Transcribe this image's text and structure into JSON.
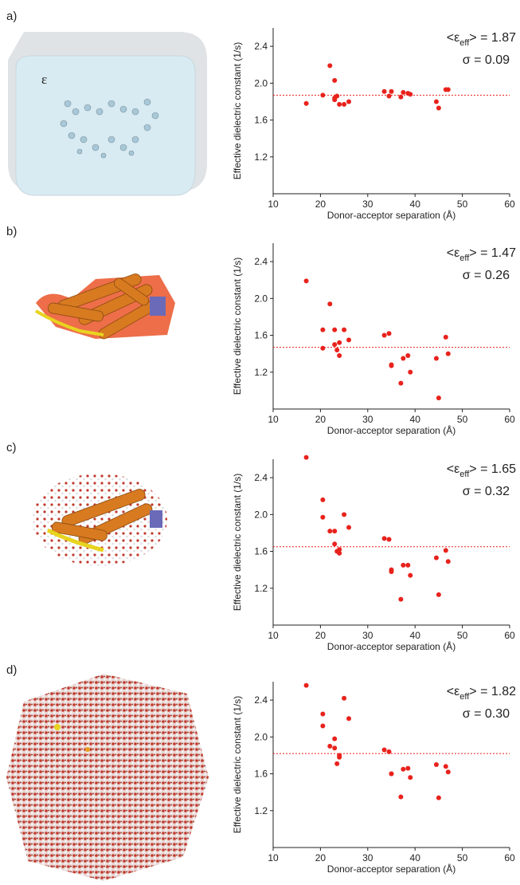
{
  "chart_data": [
    {
      "type": "scatter",
      "panel_label": "a)",
      "inset_label": "ε",
      "y_label": "Effective dielectric constant (1/s)",
      "x_label": "Donor-acceptor separation (Å)",
      "annotation": [
        "<ε",
        "eff",
        "> = 1.87"
      ],
      "sigma_label": "σ = 0.09",
      "mean": 1.87,
      "color": "#e8221c",
      "xlim": [
        10,
        60
      ],
      "xticks": [
        10,
        20,
        30,
        40,
        50,
        60
      ],
      "ylim": [
        0.8,
        2.6
      ],
      "yticks": [
        1.2,
        1.6,
        {
          "value": 2,
          "label": "2.0"
        },
        2.4
      ],
      "x": [
        17,
        20.5,
        22,
        23,
        23,
        23.5,
        23,
        24,
        25,
        26,
        33.5,
        34.5,
        35,
        37,
        37.5,
        38.5,
        39,
        44.5,
        45,
        46.5,
        47
      ],
      "values": [
        1.78,
        1.87,
        2.19,
        2.03,
        1.84,
        1.86,
        1.82,
        1.77,
        1.77,
        1.8,
        1.91,
        1.86,
        1.91,
        1.85,
        1.9,
        1.89,
        1.88,
        1.8,
        1.73,
        1.93,
        1.93
      ]
    },
    {
      "type": "scatter",
      "panel_label": "b)",
      "y_label": "Effective dielectric constant (1/s)",
      "x_label": "Donor-acceptor separation (Å)",
      "annotation": [
        "<ε",
        "eff",
        "> = 1.47"
      ],
      "sigma_label": "σ = 0.26",
      "mean": 1.47,
      "color": "#e8221c",
      "xlim": [
        10,
        60
      ],
      "xticks": [
        10,
        20,
        30,
        40,
        50,
        60
      ],
      "ylim": [
        0.8,
        2.6
      ],
      "yticks": [
        1.2,
        1.6,
        {
          "value": 2,
          "label": "2.0"
        },
        2.4
      ],
      "x": [
        17,
        20.5,
        20.5,
        22,
        23,
        23,
        23.5,
        24,
        24,
        25,
        26,
        33.5,
        34.5,
        35,
        35,
        37,
        37.5,
        38.5,
        39,
        44.5,
        45,
        46.5,
        47
      ],
      "values": [
        2.19,
        1.66,
        1.46,
        1.94,
        1.5,
        1.66,
        1.44,
        1.38,
        1.52,
        1.66,
        1.55,
        1.6,
        1.62,
        1.28,
        1.27,
        1.08,
        1.35,
        1.38,
        1.2,
        1.35,
        0.92,
        1.58,
        1.4
      ]
    },
    {
      "type": "scatter",
      "panel_label": "c)",
      "y_label": "Effective dielectric constant (1/s)",
      "x_label": "Donor-acceptor separation (Å)",
      "annotation": [
        "<ε",
        "eff",
        "> = 1.65"
      ],
      "sigma_label": "σ = 0.32",
      "mean": 1.65,
      "color": "#e8221c",
      "xlim": [
        10,
        60
      ],
      "xticks": [
        10,
        20,
        30,
        40,
        50,
        60
      ],
      "ylim": [
        0.8,
        2.6
      ],
      "yticks": [
        1.2,
        1.6,
        {
          "value": 2,
          "label": "2.0"
        },
        2.4
      ],
      "x": [
        17,
        20.5,
        20.5,
        22,
        23,
        23,
        23.5,
        24,
        24,
        25,
        26,
        33.5,
        34.5,
        35,
        35,
        37,
        37.5,
        38.5,
        39,
        44.5,
        45,
        46.5,
        47
      ],
      "values": [
        2.62,
        2.16,
        1.97,
        1.82,
        1.68,
        1.82,
        1.6,
        1.58,
        1.62,
        2.0,
        1.86,
        1.74,
        1.73,
        1.4,
        1.38,
        1.08,
        1.45,
        1.45,
        1.34,
        1.53,
        1.13,
        1.61,
        1.49
      ]
    },
    {
      "type": "scatter",
      "panel_label": "d)",
      "y_label": "Effective dielectric constant (1/s)",
      "x_label": "Donor-acceptor separation (Å)",
      "annotation": [
        "<ε",
        "eff",
        "> = 1.82"
      ],
      "sigma_label": "σ = 0.30",
      "mean": 1.82,
      "color": "#e8221c",
      "xlim": [
        10,
        60
      ],
      "xticks": [
        10,
        20,
        30,
        40,
        50,
        60
      ],
      "ylim": [
        0.8,
        2.6
      ],
      "yticks": [
        1.2,
        1.6,
        {
          "value": 2,
          "label": "2.0"
        },
        2.4
      ],
      "x": [
        17,
        20.5,
        20.5,
        22,
        23,
        23,
        23.5,
        24,
        24,
        25,
        26,
        33.5,
        34.5,
        35,
        35,
        37,
        37.5,
        38.5,
        39,
        44.5,
        45,
        46.5,
        47
      ],
      "values": [
        2.56,
        2.25,
        2.12,
        1.9,
        1.88,
        1.98,
        1.71,
        1.8,
        1.78,
        2.42,
        2.2,
        1.86,
        1.84,
        1.6,
        1.6,
        1.35,
        1.65,
        1.66,
        1.56,
        1.7,
        1.34,
        1.68,
        1.62
      ]
    }
  ]
}
